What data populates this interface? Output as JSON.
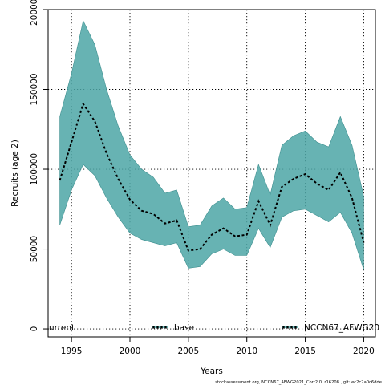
{
  "chart_data": {
    "type": "area",
    "xlabel": "Years",
    "ylabel": "Recruits (age 2)",
    "xlim": [
      1993,
      2021
    ],
    "ylim": [
      -5000,
      200000
    ],
    "x_ticks": [
      1995,
      2000,
      2005,
      2010,
      2015,
      2020
    ],
    "x_tick_labels": [
      "1995",
      "2000",
      "2005",
      "2010",
      "2015",
      "2020"
    ],
    "y_ticks": [
      0,
      50000,
      100000,
      150000,
      200000
    ],
    "y_tick_labels": [
      "0",
      "50000",
      "100000",
      "150000",
      "200000"
    ],
    "grid": true,
    "x": [
      1994,
      1995,
      1996,
      1997,
      1998,
      1999,
      2000,
      2001,
      2002,
      2003,
      2004,
      2005,
      2006,
      2007,
      2008,
      2009,
      2010,
      2011,
      2012,
      2013,
      2014,
      2015,
      2016,
      2017,
      2018,
      2019,
      2020
    ],
    "series": [
      {
        "name": "base",
        "values": [
          93000,
          117000,
          141000,
          130000,
          110000,
          94000,
          81000,
          74000,
          72000,
          66000,
          68000,
          49000,
          50000,
          59000,
          63000,
          58000,
          59000,
          80000,
          65000,
          89000,
          94000,
          97000,
          91000,
          87000,
          98000,
          82000,
          54000
        ],
        "upper": [
          133000,
          160000,
          193000,
          178000,
          150000,
          127000,
          109000,
          100000,
          95000,
          85000,
          87000,
          64000,
          65000,
          77000,
          82000,
          75000,
          76000,
          103000,
          84000,
          115000,
          121000,
          124000,
          117000,
          114000,
          133000,
          115000,
          83000
        ],
        "lower": [
          65000,
          87000,
          103000,
          96000,
          82000,
          70000,
          60000,
          56000,
          54000,
          52000,
          54000,
          38000,
          39000,
          47000,
          50000,
          46000,
          46000,
          63000,
          51000,
          70000,
          74000,
          75000,
          71000,
          67000,
          73000,
          60000,
          37000
        ],
        "color": "#4ca6a6",
        "line_color": "#000000"
      }
    ],
    "legend": {
      "placement": "bottom",
      "items": [
        {
          "label": "urrent",
          "style": "none"
        },
        {
          "label": "base",
          "style": "dash-cyan"
        },
        {
          "label": "NCCN67_AFWG20",
          "style": "dash-cyan"
        }
      ]
    },
    "footer": "stockassessment.org, NCCN67_AFWG2021_Corr2.0, r16208 , git: ec2c2a0c6dde"
  }
}
